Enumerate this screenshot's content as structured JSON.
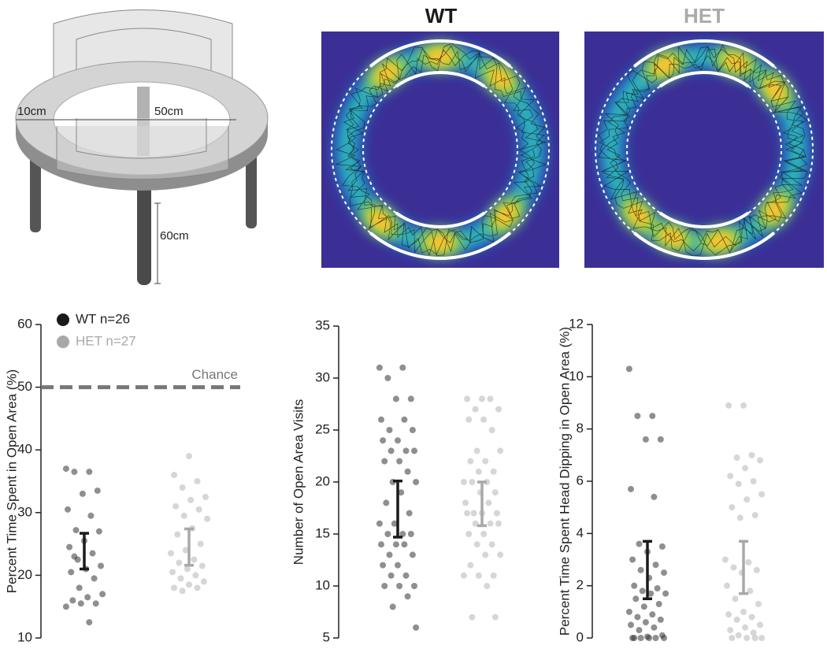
{
  "illustration": {
    "labels": [
      "10cm",
      "50cm",
      "60cm"
    ]
  },
  "heatmaps": {
    "panels": [
      {
        "title": "WT"
      },
      {
        "title": "HET"
      }
    ]
  },
  "chart_data": [
    {
      "type": "strip",
      "ylabel": "Percent Time Spent in Open Area (%)",
      "ylim": [
        10,
        60
      ],
      "yticks": [
        10,
        20,
        30,
        40,
        50,
        60
      ],
      "reference_line": {
        "value": 50,
        "label": "Chance",
        "color": "#777"
      },
      "legend": "upper left",
      "series": [
        {
          "name": "WT n=26",
          "color": "#333333",
          "bar_color": "#1a1a1a",
          "values": [
            37,
            36.5,
            36.5,
            33.5,
            33,
            30.5,
            29.5,
            27.2,
            27,
            25.5,
            24.5,
            23.5,
            22.5,
            21.5,
            21,
            20.5,
            19.5,
            18,
            17,
            16.5,
            16,
            15.5,
            15.5,
            15,
            12.5,
            23
          ],
          "ci": [
            21,
            26.7
          ]
        },
        {
          "name": "HET n=27",
          "color": "#b5b5b5",
          "bar_color": "#a8a8a8",
          "values": [
            39,
            36,
            35,
            34,
            32.5,
            32,
            31,
            30.5,
            29.5,
            29,
            27.5,
            26.5,
            25,
            24,
            23.5,
            22.5,
            22,
            21.5,
            21,
            20.5,
            20,
            19.5,
            19,
            18.5,
            18,
            18,
            17.5
          ],
          "ci": [
            21.6,
            27.4
          ]
        }
      ]
    },
    {
      "type": "strip",
      "ylabel": "Number of Open Area Visits",
      "ylim": [
        5,
        35
      ],
      "yticks": [
        5,
        10,
        15,
        20,
        25,
        30,
        35
      ],
      "series": [
        {
          "color": "#333333",
          "bar_color": "#1a1a1a",
          "values": [
            31,
            31,
            30,
            28,
            28,
            26,
            26,
            25,
            25,
            24,
            24,
            23,
            23,
            23,
            22,
            22,
            21,
            20,
            20,
            19,
            18,
            17,
            16,
            16,
            15,
            15,
            15,
            14,
            14,
            14,
            13,
            13,
            12,
            12,
            11,
            11,
            10,
            10,
            10,
            9,
            8,
            6
          ],
          "ci": [
            14.7,
            20.1
          ]
        },
        {
          "color": "#b5b5b5",
          "bar_color": "#a8a8a8",
          "values": [
            28,
            28,
            28,
            27,
            27,
            26,
            26,
            25,
            23,
            23,
            22,
            22,
            21,
            21,
            20,
            20,
            20,
            19,
            19,
            18,
            18,
            17,
            17,
            17,
            17,
            16,
            16,
            16,
            15,
            15,
            14,
            14,
            13,
            13,
            12,
            11,
            11,
            11,
            10,
            7,
            7
          ],
          "ci": [
            15.8,
            20
          ]
        }
      ]
    },
    {
      "type": "strip",
      "ylabel": "Percent Time Spent Head Dipping in Open Area (%)",
      "ylim": [
        0,
        12
      ],
      "yticks": [
        0,
        2,
        4,
        6,
        8,
        10,
        12
      ],
      "series": [
        {
          "color": "#333333",
          "bar_color": "#1a1a1a",
          "values": [
            10.3,
            8.5,
            8.5,
            7.6,
            7.6,
            5.7,
            5.4,
            3.6,
            3.5,
            3.3,
            3.0,
            2.8,
            2.6,
            2.5,
            2.3,
            2.0,
            1.9,
            1.8,
            1.7,
            1.7,
            1.5,
            1.3,
            1.2,
            1.0,
            0.9,
            0.8,
            0.7,
            0.6,
            0.5,
            0.4,
            0.3,
            0.1,
            0.05,
            0,
            0,
            0,
            0,
            0,
            0
          ],
          "ci": [
            1.5,
            3.7
          ]
        },
        {
          "color": "#b5b5b5",
          "bar_color": "#a8a8a8",
          "values": [
            8.9,
            8.9,
            7.0,
            6.9,
            6.8,
            6.5,
            6.2,
            6.0,
            5.9,
            5.5,
            5.3,
            5.0,
            4.7,
            4.6,
            3.0,
            2.9,
            2.7,
            2.6,
            2.5,
            2.0,
            1.8,
            1.5,
            1.3,
            1.0,
            0.9,
            0.8,
            0.7,
            0.5,
            0.4,
            0.3,
            0.2,
            0.1,
            0,
            0,
            0,
            0
          ],
          "ci": [
            1.7,
            3.7
          ]
        }
      ]
    }
  ]
}
